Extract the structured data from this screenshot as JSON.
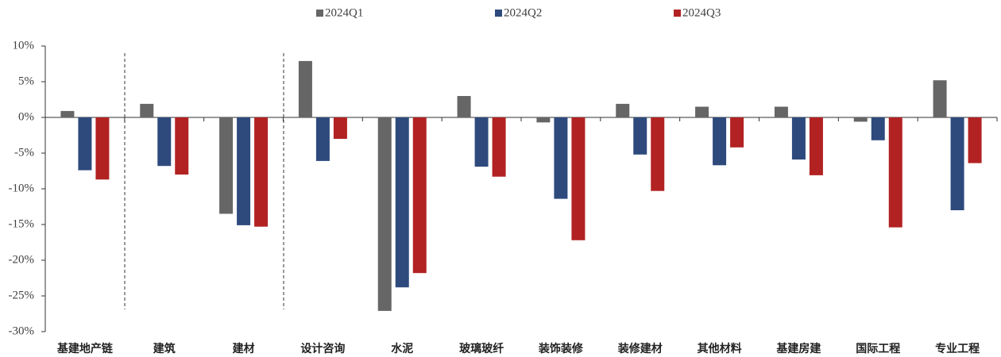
{
  "chart_data": {
    "type": "bar",
    "categories": [
      "基建地产链",
      "建筑",
      "建材",
      "设计咨询",
      "水泥",
      "玻璃玻纤",
      "装饰装修",
      "装修建材",
      "其他材料",
      "基建房建",
      "国际工程",
      "专业工程"
    ],
    "series": [
      {
        "name": "2024Q1",
        "color": "#666666",
        "values": [
          0.9,
          1.9,
          -13.5,
          7.9,
          -27.1,
          3.0,
          -0.7,
          1.9,
          1.5,
          1.5,
          -0.6,
          5.2
        ]
      },
      {
        "name": "2024Q2",
        "color": "#2e4a7d",
        "values": [
          -7.4,
          -6.8,
          -15.1,
          -6.1,
          -23.8,
          -6.9,
          -11.4,
          -5.2,
          -6.7,
          -5.9,
          -3.2,
          -13.0
        ]
      },
      {
        "name": "2024Q3",
        "color": "#b22222",
        "values": [
          -8.7,
          -8.0,
          -15.3,
          -3.0,
          -21.8,
          -8.3,
          -17.2,
          -10.3,
          -4.2,
          -8.1,
          -15.4,
          -6.4
        ]
      }
    ],
    "ylim": [
      -30,
      10
    ],
    "yticks": [
      {
        "value": -30,
        "label": "-30%"
      },
      {
        "value": -25,
        "label": "-25%"
      },
      {
        "value": -20,
        "label": "-20%"
      },
      {
        "value": -15,
        "label": "-15%"
      },
      {
        "value": -10,
        "label": "-10%"
      },
      {
        "value": -5,
        "label": "-5%"
      },
      {
        "value": 0,
        "label": "0%"
      },
      {
        "value": 5,
        "label": "5%"
      },
      {
        "value": 10,
        "label": "10%"
      }
    ],
    "grid": false
  }
}
